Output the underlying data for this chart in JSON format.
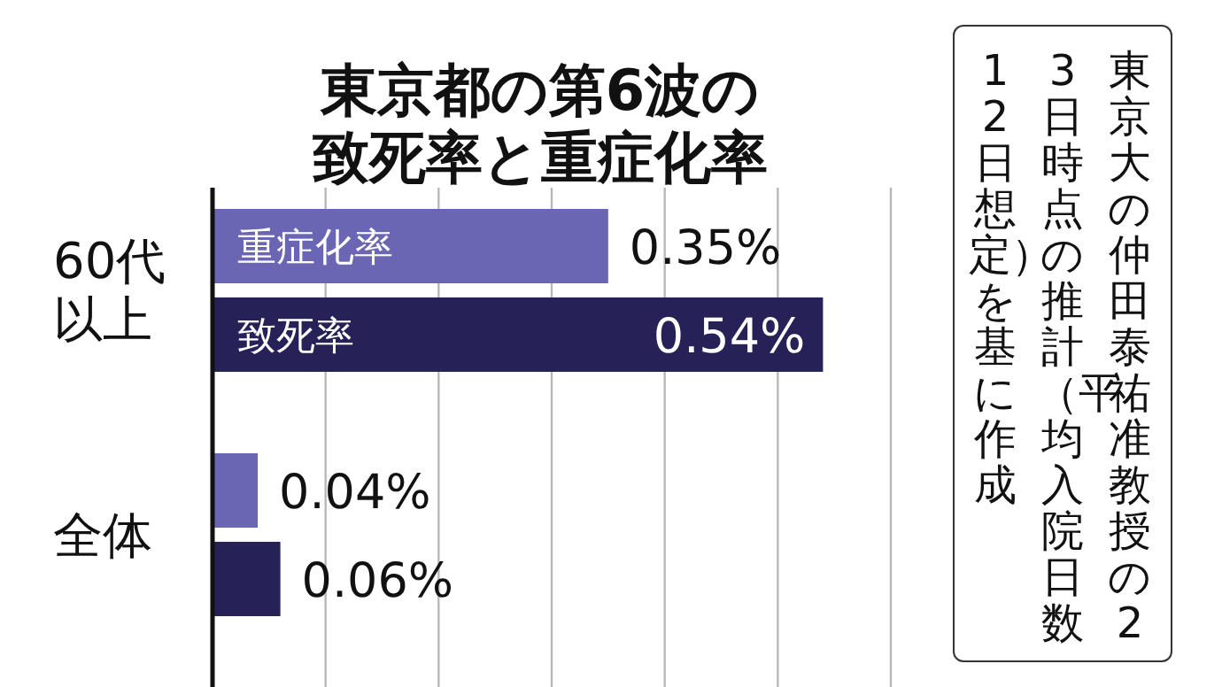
{
  "chart_data": {
    "type": "bar",
    "orientation": "horizontal",
    "title": "東京都の第6波の致死率と重症化率",
    "categories": [
      "60代以上",
      "全体"
    ],
    "series": [
      {
        "name": "重症化率",
        "color": "#6b66b3",
        "values": [
          0.35,
          0.04
        ],
        "value_labels": [
          "0.35%",
          "0.04%"
        ]
      },
      {
        "name": "致死率",
        "color": "#262257",
        "values": [
          0.54,
          0.06
        ],
        "value_labels": [
          "0.54%",
          "0.06%"
        ]
      }
    ],
    "xlim": [
      0,
      0.6
    ],
    "xticks": [
      {
        "value": 0,
        "label": null
      },
      {
        "value": 0.1,
        "label": null
      },
      {
        "value": 0.2,
        "label": null
      },
      {
        "value": 0.3,
        "label": null
      },
      {
        "value": 0.4,
        "label": null
      },
      {
        "value": 0.5,
        "label": null
      },
      {
        "value": 0.6,
        "label": null
      }
    ],
    "grid": "x",
    "tick_labels": "y",
    "annotations": [
      "東京大の仲田泰祐准教授の23日時点の推計（平均入院日数12日想定）を基に作成"
    ]
  }
}
